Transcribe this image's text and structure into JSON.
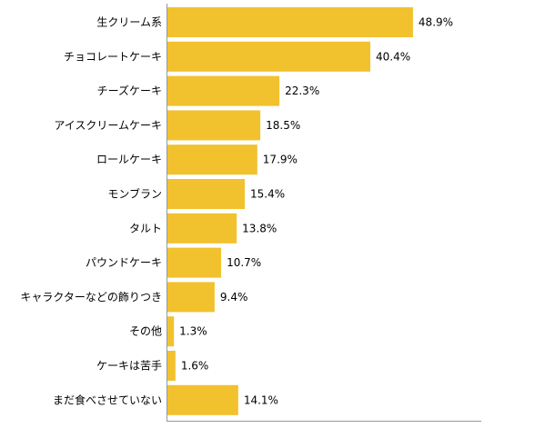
{
  "chart_data": {
    "type": "bar",
    "orientation": "horizontal",
    "categories": [
      "生クリーム系",
      "チョコレートケーキ",
      "チーズケーキ",
      "アイスクリームケーキ",
      "ロールケーキ",
      "モンブラン",
      "タルト",
      "パウンドケーキ",
      "キャラクターなどの飾りつき",
      "その他",
      "ケーキは苦手",
      "まだ食べさせていない"
    ],
    "values": [
      48.9,
      40.4,
      22.3,
      18.5,
      17.9,
      15.4,
      13.8,
      10.7,
      9.4,
      1.3,
      1.6,
      14.1
    ],
    "value_labels": [
      "48.9%",
      "40.4%",
      "22.3%",
      "18.5%",
      "17.9%",
      "15.4%",
      "13.8%",
      "10.7%",
      "9.4%",
      "1.3%",
      "1.6%",
      "14.1%"
    ],
    "title": "",
    "xlabel": "",
    "ylabel": "",
    "xlim": [
      0,
      100
    ],
    "grid": false,
    "legend": "none",
    "bar_color": "#f2c12e",
    "axis_color": "#999999"
  }
}
